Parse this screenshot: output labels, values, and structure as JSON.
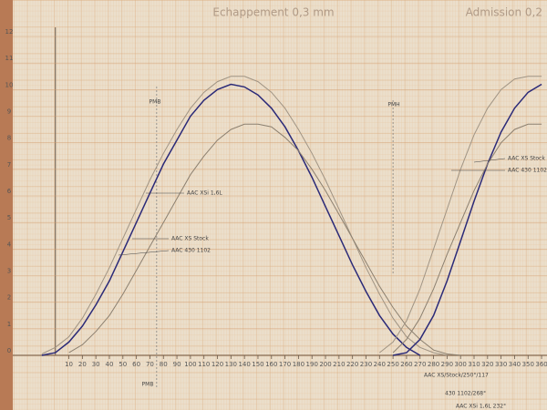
{
  "chart_data": {
    "type": "line",
    "title": "Echappement 0,3 mm",
    "subtitle": "Admission 0,2",
    "x": [
      -20,
      -10,
      0,
      10,
      20,
      30,
      40,
      50,
      60,
      70,
      80,
      90,
      100,
      110,
      120,
      130,
      140,
      150,
      160,
      170,
      180,
      190,
      200,
      210,
      220,
      230,
      240,
      250,
      260,
      270,
      280,
      290,
      300,
      310,
      320,
      330,
      340,
      350,
      360
    ],
    "series": [
      {
        "name": "AAC XSi 1,6L",
        "color": "#2b2a78",
        "values": [
          null,
          0,
          0.1,
          0.5,
          1.1,
          1.9,
          2.8,
          3.9,
          5.0,
          6.1,
          7.2,
          8.1,
          9.0,
          9.6,
          10.0,
          10.2,
          10.1,
          9.8,
          9.3,
          8.6,
          7.7,
          6.7,
          5.6,
          4.5,
          3.4,
          2.4,
          1.5,
          0.8,
          0.3,
          0,
          null,
          null,
          null,
          null,
          null,
          null,
          null,
          null,
          null
        ]
      },
      {
        "name": "AAC XS Stock",
        "color": "#a09484",
        "values": [
          null,
          0.05,
          0.3,
          0.7,
          1.4,
          2.3,
          3.3,
          4.4,
          5.5,
          6.6,
          7.6,
          8.5,
          9.3,
          9.9,
          10.3,
          10.5,
          10.5,
          10.3,
          9.9,
          9.3,
          8.5,
          7.6,
          6.6,
          5.5,
          4.4,
          3.3,
          2.3,
          1.4,
          0.7,
          0.3,
          0.1,
          0,
          null,
          null,
          null,
          null,
          null,
          null,
          null
        ]
      },
      {
        "name": "AAC 430 1102",
        "color": "#8c8070",
        "values": [
          null,
          null,
          null,
          0.1,
          0.4,
          0.9,
          1.5,
          2.3,
          3.2,
          4.1,
          5.0,
          5.9,
          6.8,
          7.5,
          8.1,
          8.5,
          8.7,
          8.7,
          8.6,
          8.2,
          7.7,
          7.0,
          6.2,
          5.3,
          4.4,
          3.5,
          2.6,
          1.8,
          1.1,
          0.6,
          0.2,
          0.05,
          0,
          null,
          null,
          null,
          null,
          null,
          null
        ]
      },
      {
        "color": "#2b2a78",
        "values": [
          null,
          null,
          null,
          null,
          null,
          null,
          null,
          null,
          null,
          null,
          null,
          null,
          null,
          null,
          null,
          null,
          null,
          null,
          null,
          null,
          null,
          null,
          null,
          null,
          null,
          null,
          null,
          0,
          0.1,
          0.6,
          1.5,
          2.8,
          4.3,
          5.8,
          7.2,
          8.4,
          9.3,
          9.9,
          10.2
        ]
      },
      {
        "name": "AAC XS Stock",
        "color": "#a09484",
        "values": [
          null,
          null,
          null,
          null,
          null,
          null,
          null,
          null,
          null,
          null,
          null,
          null,
          null,
          null,
          null,
          null,
          null,
          null,
          null,
          null,
          null,
          null,
          null,
          null,
          null,
          null,
          0.1,
          0.5,
          1.3,
          2.5,
          4.0,
          5.5,
          7.0,
          8.3,
          9.3,
          10.0,
          10.4,
          10.5,
          10.5
        ]
      },
      {
        "name": "AAC 430 1102",
        "color": "#8c8070",
        "values": [
          null,
          null,
          null,
          null,
          null,
          null,
          null,
          null,
          null,
          null,
          null,
          null,
          null,
          null,
          null,
          null,
          null,
          null,
          null,
          null,
          null,
          null,
          null,
          null,
          null,
          null,
          null,
          0.1,
          0.6,
          1.4,
          2.5,
          3.8,
          5.0,
          6.2,
          7.2,
          8.0,
          8.5,
          8.7,
          8.7
        ]
      }
    ],
    "xlim": [
      -41,
      364
    ],
    "ylim": [
      0,
      12
    ],
    "xticks": [
      10,
      20,
      30,
      40,
      50,
      60,
      70,
      80,
      90,
      100,
      110,
      120,
      130,
      140,
      150,
      160,
      170,
      180,
      190,
      200,
      210,
      220,
      230,
      240,
      250,
      260,
      270,
      280,
      290,
      300,
      310,
      320,
      330,
      340,
      350,
      360
    ],
    "yticks": [
      0,
      1,
      2,
      3,
      4,
      5,
      6,
      7,
      8,
      9,
      10,
      11,
      12
    ],
    "annotations": [
      "PMB",
      "PMH",
      "PMB",
      "AAC XS/Stock/250°/117",
      "430 1102/268°",
      "AAC XSi 1,6L 232°"
    ],
    "grid": true
  }
}
